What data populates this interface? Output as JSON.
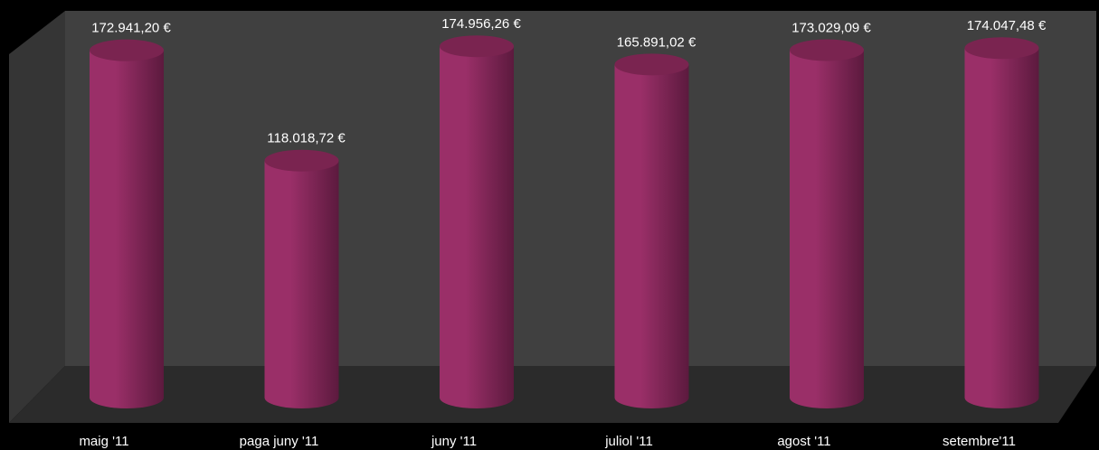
{
  "chart_data": {
    "type": "bar",
    "bar_shape": "cylinder",
    "categories": [
      "maig '11",
      "paga juny '11",
      "juny '11",
      "juliol '11",
      "agost '11",
      "setembre'11"
    ],
    "values": [
      172941.2,
      118018.72,
      174956.26,
      165891.02,
      173029.09,
      174047.48
    ],
    "value_labels": [
      "172.941,20 €",
      "118.018,72 €",
      "174.956,26 €",
      "165.891,02 €",
      "173.029,09 €",
      "174.047,48 €"
    ],
    "title": "",
    "xlabel": "",
    "ylabel": "",
    "ylim": [
      0,
      180000
    ],
    "grid": false,
    "legend": "none"
  },
  "colors": {
    "background": "#000000",
    "plot_wall": "#404040",
    "plot_floor": "#2b2b2b",
    "bar_light": "#9a2f68",
    "bar_dark": "#5c1a3e",
    "bar_top": "#7a2450",
    "label": "#ffffff"
  }
}
